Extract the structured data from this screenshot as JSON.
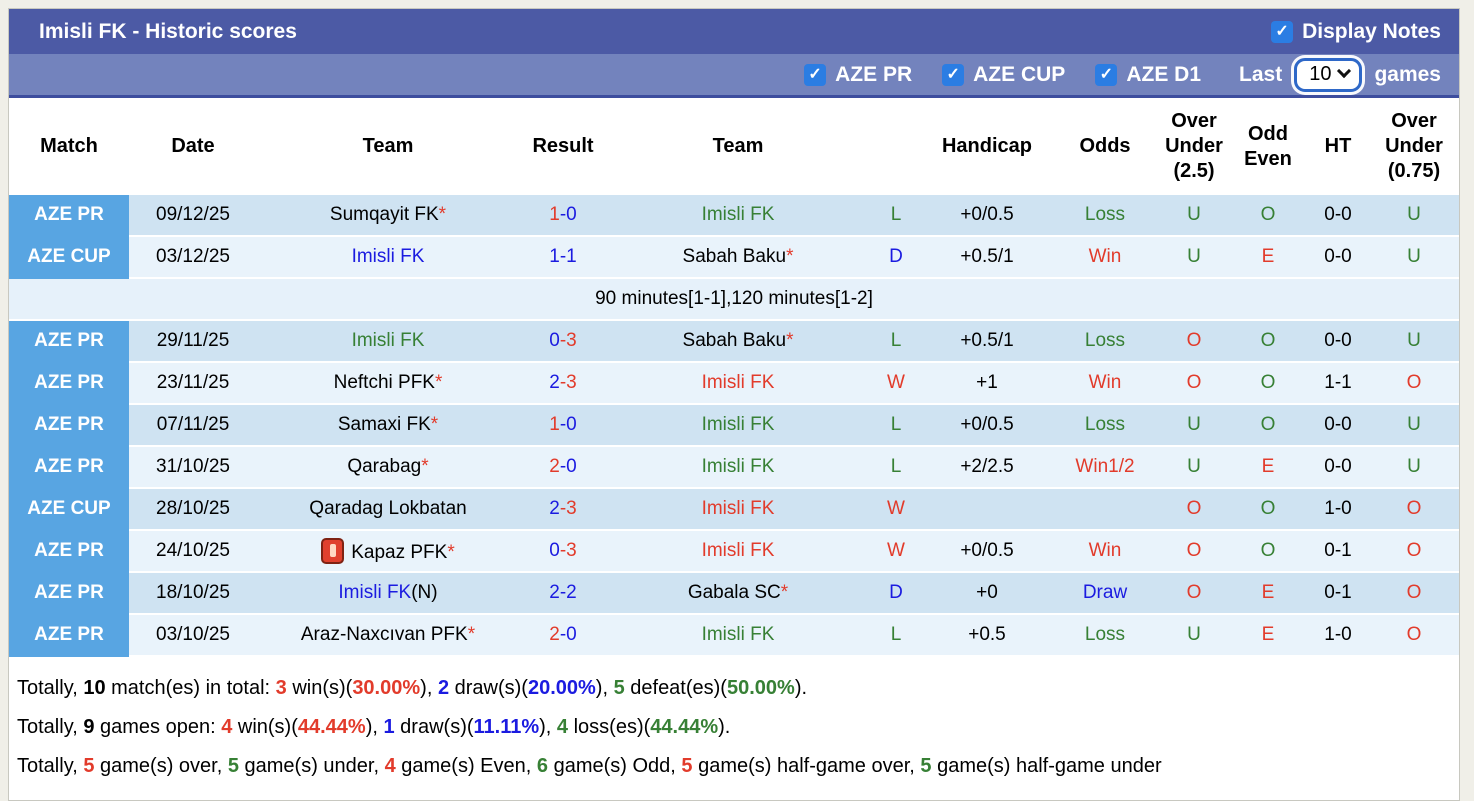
{
  "header": {
    "title": "Imisli FK - Historic scores",
    "display_notes_label": "Display Notes",
    "display_notes_checked": true
  },
  "filters": {
    "leagues": [
      {
        "label": "AZE PR",
        "checked": true
      },
      {
        "label": "AZE CUP",
        "checked": true
      },
      {
        "label": "AZE D1",
        "checked": true
      }
    ],
    "last_label": "Last",
    "last_value": "10",
    "games_label": "games"
  },
  "table": {
    "columns": [
      {
        "key": "match",
        "label": "Match"
      },
      {
        "key": "date",
        "label": "Date"
      },
      {
        "key": "team-home",
        "label": "Team"
      },
      {
        "key": "result",
        "label": "Result"
      },
      {
        "key": "team-away",
        "label": "Team"
      },
      {
        "key": "wdl",
        "label": ""
      },
      {
        "key": "handicap",
        "label": "Handicap"
      },
      {
        "key": "odds",
        "label": "Odds"
      },
      {
        "key": "over-under-2-5",
        "label": "Over\nUnder\n(2.5)"
      },
      {
        "key": "odd-even",
        "label": "Odd\nEven"
      },
      {
        "key": "ht",
        "label": "HT"
      },
      {
        "key": "over-under-0-75",
        "label": "Over\nUnder\n(0.75)"
      }
    ],
    "rows": [
      {
        "match": "AZE PR",
        "date": "09/12/25",
        "team1": {
          "text": "Sumqayit FK",
          "color": "black",
          "star": true
        },
        "score1": {
          "text": "1",
          "color": "red"
        },
        "score2": {
          "text": "0",
          "color": "blue"
        },
        "team2": {
          "text": "Imisli FK",
          "color": "green",
          "star": false
        },
        "wdl": {
          "text": "L",
          "color": "green"
        },
        "handicap": "+0/0.5",
        "odds": {
          "text": "Loss",
          "color": "green"
        },
        "ou25": {
          "text": "U",
          "color": "green"
        },
        "oe": {
          "text": "O",
          "color": "green"
        },
        "ht": "0-0",
        "ou075": {
          "text": "U",
          "color": "green"
        },
        "shade": "dark"
      },
      {
        "match": "AZE CUP",
        "date": "03/12/25",
        "team1": {
          "text": "Imisli FK",
          "color": "blue",
          "star": false
        },
        "score1": {
          "text": "1",
          "color": "blue"
        },
        "score2": {
          "text": "1",
          "color": "blue"
        },
        "team2": {
          "text": "Sabah Baku",
          "color": "black",
          "star": true
        },
        "wdl": {
          "text": "D",
          "color": "blue"
        },
        "handicap": "+0.5/1",
        "odds": {
          "text": "Win",
          "color": "red"
        },
        "ou25": {
          "text": "U",
          "color": "green"
        },
        "oe": {
          "text": "E",
          "color": "red"
        },
        "ht": "0-0",
        "ou075": {
          "text": "U",
          "color": "green"
        },
        "shade": "light"
      },
      {
        "note": "90 minutes[1-1],120 minutes[1-2]"
      },
      {
        "match": "AZE PR",
        "date": "29/11/25",
        "team1": {
          "text": "Imisli FK",
          "color": "green",
          "star": false
        },
        "score1": {
          "text": "0",
          "color": "blue"
        },
        "score2": {
          "text": "3",
          "color": "red"
        },
        "team2": {
          "text": "Sabah Baku",
          "color": "black",
          "star": true
        },
        "wdl": {
          "text": "L",
          "color": "green"
        },
        "handicap": "+0.5/1",
        "odds": {
          "text": "Loss",
          "color": "green"
        },
        "ou25": {
          "text": "O",
          "color": "red"
        },
        "oe": {
          "text": "O",
          "color": "green"
        },
        "ht": "0-0",
        "ou075": {
          "text": "U",
          "color": "green"
        },
        "shade": "dark"
      },
      {
        "match": "AZE PR",
        "date": "23/11/25",
        "team1": {
          "text": "Neftchi PFK",
          "color": "black",
          "star": true
        },
        "score1": {
          "text": "2",
          "color": "blue"
        },
        "score2": {
          "text": "3",
          "color": "red"
        },
        "team2": {
          "text": "Imisli FK",
          "color": "red",
          "star": false
        },
        "wdl": {
          "text": "W",
          "color": "red"
        },
        "handicap": "+1",
        "odds": {
          "text": "Win",
          "color": "red"
        },
        "ou25": {
          "text": "O",
          "color": "red"
        },
        "oe": {
          "text": "O",
          "color": "green"
        },
        "ht": "1-1",
        "ou075": {
          "text": "O",
          "color": "red"
        },
        "shade": "light"
      },
      {
        "match": "AZE PR",
        "date": "07/11/25",
        "team1": {
          "text": "Samaxi FK",
          "color": "black",
          "star": true
        },
        "score1": {
          "text": "1",
          "color": "red"
        },
        "score2": {
          "text": "0",
          "color": "blue"
        },
        "team2": {
          "text": "Imisli FK",
          "color": "green",
          "star": false
        },
        "wdl": {
          "text": "L",
          "color": "green"
        },
        "handicap": "+0/0.5",
        "odds": {
          "text": "Loss",
          "color": "green"
        },
        "ou25": {
          "text": "U",
          "color": "green"
        },
        "oe": {
          "text": "O",
          "color": "green"
        },
        "ht": "0-0",
        "ou075": {
          "text": "U",
          "color": "green"
        },
        "shade": "dark"
      },
      {
        "match": "AZE PR",
        "date": "31/10/25",
        "team1": {
          "text": "Qarabag",
          "color": "black",
          "star": true
        },
        "score1": {
          "text": "2",
          "color": "red"
        },
        "score2": {
          "text": "0",
          "color": "blue"
        },
        "team2": {
          "text": "Imisli FK",
          "color": "green",
          "star": false
        },
        "wdl": {
          "text": "L",
          "color": "green"
        },
        "handicap": "+2/2.5",
        "odds": {
          "text": "Win1/2",
          "color": "red"
        },
        "ou25": {
          "text": "U",
          "color": "green"
        },
        "oe": {
          "text": "E",
          "color": "red"
        },
        "ht": "0-0",
        "ou075": {
          "text": "U",
          "color": "green"
        },
        "shade": "light"
      },
      {
        "match": "AZE CUP",
        "date": "28/10/25",
        "team1": {
          "text": "Qaradag Lokbatan",
          "color": "black",
          "star": false
        },
        "score1": {
          "text": "2",
          "color": "blue"
        },
        "score2": {
          "text": "3",
          "color": "red"
        },
        "team2": {
          "text": "Imisli FK",
          "color": "red",
          "star": false
        },
        "wdl": {
          "text": "W",
          "color": "red"
        },
        "handicap": "",
        "odds": {
          "text": "",
          "color": "black"
        },
        "ou25": {
          "text": "O",
          "color": "red"
        },
        "oe": {
          "text": "O",
          "color": "green"
        },
        "ht": "1-0",
        "ou075": {
          "text": "O",
          "color": "red"
        },
        "shade": "dark"
      },
      {
        "match": "AZE PR",
        "date": "24/10/25",
        "team1": {
          "text": "Kapaz PFK",
          "color": "black",
          "star": true,
          "icon": "red-card-icon"
        },
        "score1": {
          "text": "0",
          "color": "blue"
        },
        "score2": {
          "text": "3",
          "color": "red"
        },
        "team2": {
          "text": "Imisli FK",
          "color": "red",
          "star": false
        },
        "wdl": {
          "text": "W",
          "color": "red"
        },
        "handicap": "+0/0.5",
        "odds": {
          "text": "Win",
          "color": "red"
        },
        "ou25": {
          "text": "O",
          "color": "red"
        },
        "oe": {
          "text": "O",
          "color": "green"
        },
        "ht": "0-1",
        "ou075": {
          "text": "O",
          "color": "red"
        },
        "shade": "light"
      },
      {
        "match": "AZE PR",
        "date": "18/10/25",
        "team1": {
          "text": "Imisli FK",
          "color": "blue",
          "star": false,
          "suffix": "(N)"
        },
        "score1": {
          "text": "2",
          "color": "blue"
        },
        "score2": {
          "text": "2",
          "color": "blue"
        },
        "team2": {
          "text": "Gabala SC",
          "color": "black",
          "star": true
        },
        "wdl": {
          "text": "D",
          "color": "blue"
        },
        "handicap": "+0",
        "odds": {
          "text": "Draw",
          "color": "blue"
        },
        "ou25": {
          "text": "O",
          "color": "red"
        },
        "oe": {
          "text": "E",
          "color": "red"
        },
        "ht": "0-1",
        "ou075": {
          "text": "O",
          "color": "red"
        },
        "shade": "dark"
      },
      {
        "match": "AZE PR",
        "date": "03/10/25",
        "team1": {
          "text": "Araz-Naxcıvan PFK",
          "color": "black",
          "star": true
        },
        "score1": {
          "text": "2",
          "color": "red"
        },
        "score2": {
          "text": "0",
          "color": "blue"
        },
        "team2": {
          "text": "Imisli FK",
          "color": "green",
          "star": false
        },
        "wdl": {
          "text": "L",
          "color": "green"
        },
        "handicap": "+0.5",
        "odds": {
          "text": "Loss",
          "color": "green"
        },
        "ou25": {
          "text": "U",
          "color": "green"
        },
        "oe": {
          "text": "E",
          "color": "red"
        },
        "ht": "1-0",
        "ou075": {
          "text": "O",
          "color": "red"
        },
        "shade": "light"
      }
    ]
  },
  "summary": [
    {
      "segments": [
        {
          "t": "Totally, ",
          "c": "black"
        },
        {
          "t": "10",
          "c": "black",
          "w": true
        },
        {
          "t": " match(es) in total: ",
          "c": "black"
        },
        {
          "t": "3",
          "c": "red",
          "w": true
        },
        {
          "t": " win(s)(",
          "c": "black"
        },
        {
          "t": "30.00%",
          "c": "red",
          "w": true
        },
        {
          "t": "), ",
          "c": "black"
        },
        {
          "t": "2",
          "c": "blue",
          "w": true
        },
        {
          "t": " draw(s)(",
          "c": "black"
        },
        {
          "t": "20.00%",
          "c": "blue",
          "w": true
        },
        {
          "t": "), ",
          "c": "black"
        },
        {
          "t": "5",
          "c": "green",
          "w": true
        },
        {
          "t": " defeat(es)(",
          "c": "black"
        },
        {
          "t": "50.00%",
          "c": "green",
          "w": true
        },
        {
          "t": ").",
          "c": "black"
        }
      ]
    },
    {
      "segments": [
        {
          "t": "Totally, ",
          "c": "black"
        },
        {
          "t": "9",
          "c": "black",
          "w": true
        },
        {
          "t": " games open: ",
          "c": "black"
        },
        {
          "t": "4",
          "c": "red",
          "w": true
        },
        {
          "t": " win(s)(",
          "c": "black"
        },
        {
          "t": "44.44%",
          "c": "red",
          "w": true
        },
        {
          "t": "), ",
          "c": "black"
        },
        {
          "t": "1",
          "c": "blue",
          "w": true
        },
        {
          "t": " draw(s)(",
          "c": "black"
        },
        {
          "t": "11.11%",
          "c": "blue",
          "w": true
        },
        {
          "t": "), ",
          "c": "black"
        },
        {
          "t": "4",
          "c": "green",
          "w": true
        },
        {
          "t": " loss(es)(",
          "c": "black"
        },
        {
          "t": "44.44%",
          "c": "green",
          "w": true
        },
        {
          "t": ").",
          "c": "black"
        }
      ]
    },
    {
      "segments": [
        {
          "t": "Totally, ",
          "c": "black"
        },
        {
          "t": "5",
          "c": "red",
          "w": true
        },
        {
          "t": " game(s) over, ",
          "c": "black"
        },
        {
          "t": "5",
          "c": "green",
          "w": true
        },
        {
          "t": " game(s) under, ",
          "c": "black"
        },
        {
          "t": "4",
          "c": "red",
          "w": true
        },
        {
          "t": " game(s) Even, ",
          "c": "black"
        },
        {
          "t": "6",
          "c": "green",
          "w": true
        },
        {
          "t": " game(s) Odd, ",
          "c": "black"
        },
        {
          "t": "5",
          "c": "red",
          "w": true
        },
        {
          "t": " game(s) half-game over, ",
          "c": "black"
        },
        {
          "t": "5",
          "c": "green",
          "w": true
        },
        {
          "t": " game(s) half-game under",
          "c": "black"
        }
      ]
    }
  ],
  "colors": {
    "titlebar": "#4c5aa5",
    "filterbar": "#7383bd",
    "checkbox_blue": "#2b7de3",
    "badge_blue": "#58a5e2",
    "row_dark": "#cfe3f2",
    "row_light": "#e9f3fb",
    "text_red": "#e23b2b",
    "text_green": "#378035",
    "text_blue": "#1b1be0"
  }
}
